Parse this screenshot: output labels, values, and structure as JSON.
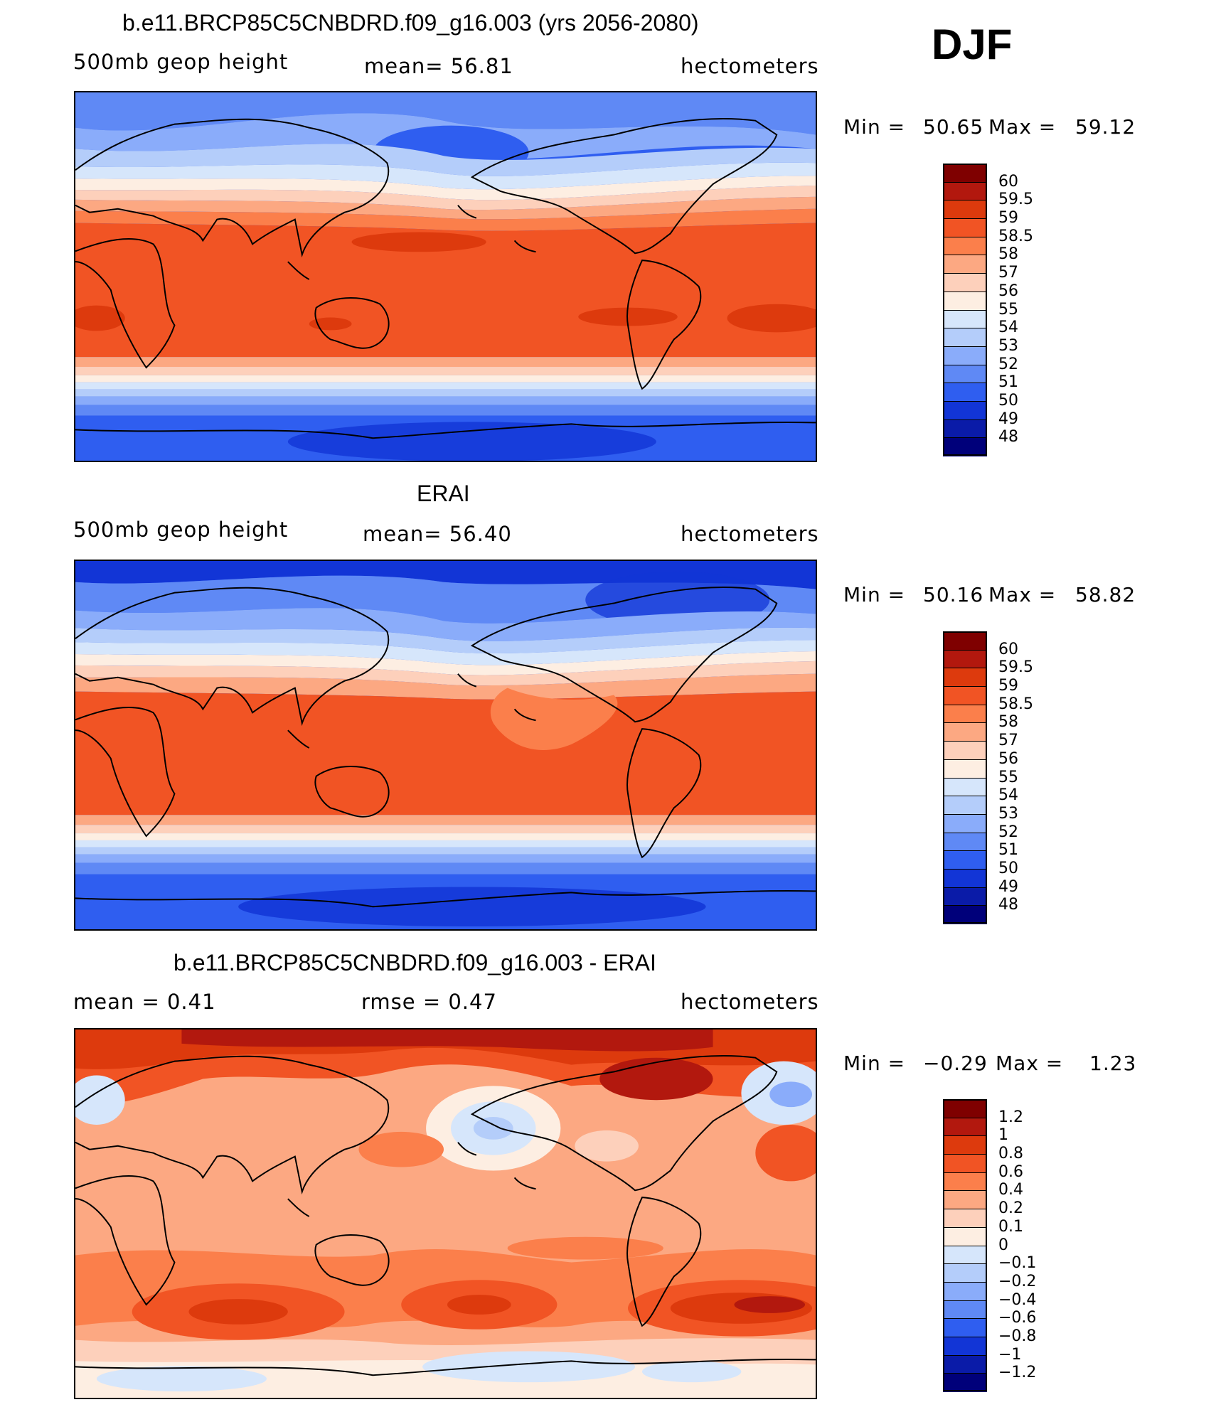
{
  "season": "DJF",
  "chart_data": [
    {
      "type": "heatmap",
      "title": "b.e11.BRCP85C5CNBDRD.f09_g16.003 (yrs 2056-2080)",
      "left_label": "500mb geop height",
      "center_label": "mean=  56.81",
      "units": "hectometers",
      "min_label": "Min =",
      "min_value": "50.65",
      "max_label": "Max =",
      "max_value": "59.12",
      "colorbar_levels": [
        "60",
        "59.5",
        "59",
        "58.5",
        "58",
        "57",
        "56",
        "55",
        "54",
        "53",
        "52",
        "51",
        "50",
        "49",
        "48"
      ],
      "colors": [
        "#7f0000",
        "#b2180e",
        "#dd3a0d",
        "#f15424",
        "#fb7f4b",
        "#fca882",
        "#fdd0bb",
        "#fdeee2",
        "#d6e6fb",
        "#b4cdfa",
        "#8aacfa",
        "#5f89f5",
        "#2f5ef0",
        "#1235d6",
        "#0a1ba8",
        "#00007a"
      ]
    },
    {
      "type": "heatmap",
      "title": "ERAI",
      "left_label": "500mb geop height",
      "center_label": "mean=  56.40",
      "units": "hectometers",
      "min_label": "Min =",
      "min_value": "50.16",
      "max_label": "Max =",
      "max_value": "58.82",
      "colorbar_levels": [
        "60",
        "59.5",
        "59",
        "58.5",
        "58",
        "57",
        "56",
        "55",
        "54",
        "53",
        "52",
        "51",
        "50",
        "49",
        "48"
      ],
      "colors": [
        "#7f0000",
        "#b2180e",
        "#dd3a0d",
        "#f15424",
        "#fb7f4b",
        "#fca882",
        "#fdd0bb",
        "#fdeee2",
        "#d6e6fb",
        "#b4cdfa",
        "#8aacfa",
        "#5f89f5",
        "#2f5ef0",
        "#1235d6",
        "#0a1ba8",
        "#00007a"
      ]
    },
    {
      "type": "heatmap",
      "title": "b.e11.BRCP85C5CNBDRD.f09_g16.003 - ERAI",
      "left_label": "mean =     0.41",
      "center_label": "rmse =     0.47",
      "units": "hectometers",
      "min_label": "Min =",
      "min_value": "−0.29",
      "max_label": "Max =",
      "max_value": "1.23",
      "colorbar_levels": [
        "1.2",
        "1",
        "0.8",
        "0.6",
        "0.4",
        "0.2",
        "0.1",
        "0",
        "−0.1",
        "−0.2",
        "−0.4",
        "−0.6",
        "−0.8",
        "−1",
        "−1.2"
      ],
      "colors": [
        "#7f0000",
        "#b2180e",
        "#dd3a0d",
        "#f15424",
        "#fb7f4b",
        "#fca882",
        "#fdd0bb",
        "#fdeee2",
        "#d6e6fb",
        "#b4cdfa",
        "#8aacfa",
        "#5f89f5",
        "#2f5ef0",
        "#1235d6",
        "#0a1ba8",
        "#00007a"
      ]
    }
  ]
}
